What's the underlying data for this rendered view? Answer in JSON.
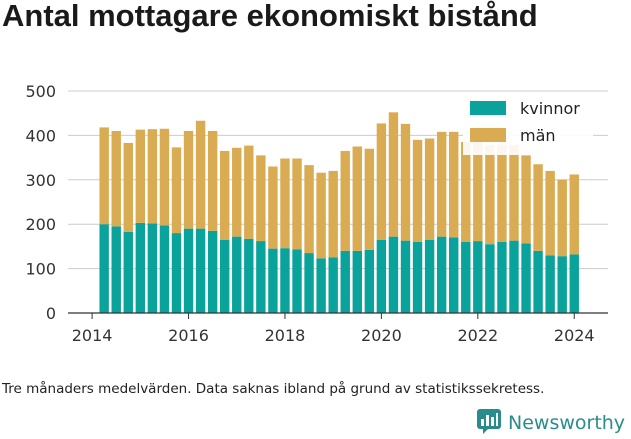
{
  "title": "Antal mottagare ekonomiskt bistånd",
  "footnote": "Tre månaders medelvärden. Data saknas ibland på grund av statistikssekretess.",
  "brand": {
    "name": "Newsworthy",
    "icon": "newsworthy-logo-icon"
  },
  "colors": {
    "kvinnor": "#0aa39b",
    "man": "#d9ab52",
    "grid": "#cccccc",
    "axis": "#333333"
  },
  "chart_data": {
    "type": "bar",
    "stacked": true,
    "x_unit": "year (quarterly bars)",
    "x": [
      2014.25,
      2014.5,
      2014.75,
      2015.0,
      2015.25,
      2015.5,
      2015.75,
      2016.0,
      2016.25,
      2016.5,
      2016.75,
      2017.0,
      2017.25,
      2017.5,
      2017.75,
      2018.0,
      2018.25,
      2018.5,
      2018.75,
      2019.0,
      2019.25,
      2019.5,
      2019.75,
      2020.0,
      2020.25,
      2020.5,
      2020.75,
      2021.0,
      2021.25,
      2021.5,
      2021.75,
      2022.0,
      2022.25,
      2022.5,
      2022.75,
      2023.0,
      2023.25,
      2023.5,
      2023.75,
      2024.0
    ],
    "series": [
      {
        "name": "kvinnor",
        "values": [
          200,
          195,
          183,
          203,
          202,
          197,
          180,
          190,
          190,
          185,
          165,
          172,
          167,
          162,
          145,
          146,
          143,
          135,
          123,
          125,
          140,
          140,
          142,
          165,
          172,
          163,
          160,
          165,
          172,
          170,
          160,
          162,
          155,
          160,
          163,
          157,
          140,
          130,
          128,
          132
        ]
      },
      {
        "name": "män",
        "values": [
          218,
          215,
          200,
          210,
          212,
          218,
          193,
          220,
          243,
          225,
          200,
          200,
          210,
          193,
          185,
          202,
          205,
          198,
          193,
          195,
          225,
          235,
          228,
          262,
          280,
          263,
          230,
          228,
          236,
          238,
          225,
          230,
          223,
          220,
          215,
          198,
          195,
          190,
          172,
          180
        ]
      }
    ],
    "xlim": [
      2013.5,
      2024.7
    ],
    "ylim": [
      0,
      500
    ],
    "xticks": [
      2014,
      2016,
      2018,
      2020,
      2022,
      2024
    ],
    "yticks": [
      0,
      100,
      200,
      300,
      400,
      500
    ],
    "legend": "top-right",
    "grid": "horizontal"
  }
}
